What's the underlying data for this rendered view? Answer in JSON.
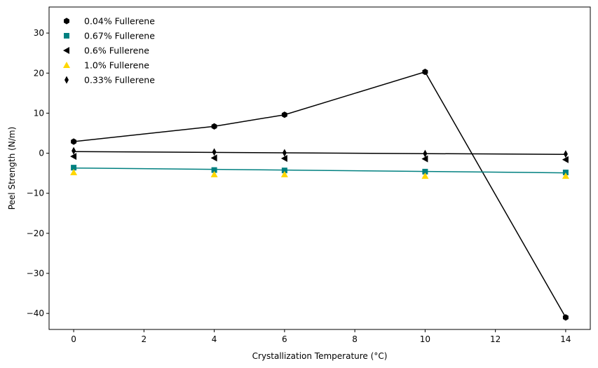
{
  "chart_data": {
    "type": "scatter",
    "title": "",
    "xlabel": "Crystallization Temperature (°C)",
    "ylabel": "Peel Strength (N/m)",
    "xlim": [
      -0.7,
      14.7
    ],
    "ylim": [
      -44,
      36.5
    ],
    "xticks": [
      0,
      2,
      4,
      6,
      8,
      10,
      12,
      14
    ],
    "yticks": [
      -40,
      -30,
      -20,
      -10,
      0,
      10,
      20,
      30
    ],
    "grid": false,
    "legend": "top-left",
    "x": [
      0,
      4,
      6,
      10,
      14
    ],
    "series": [
      {
        "name": "0.04% Fullerene",
        "marker": "hexagon",
        "color": "#000000",
        "values": [
          2.9,
          6.7,
          9.6,
          20.3,
          -41.0
        ],
        "fit_line": {
          "x": [
            0,
            4,
            6,
            10,
            14
          ],
          "y": [
            2.9,
            6.7,
            9.6,
            20.3,
            -41.0
          ],
          "color": "#000000"
        }
      },
      {
        "name": "0.67% Fullerene",
        "marker": "square",
        "color": "#008080",
        "values": [
          -3.6,
          -4.2,
          -4.3,
          -4.6,
          -4.8
        ],
        "fit_line": {
          "x": [
            0,
            14
          ],
          "y": [
            -3.7,
            -4.9
          ],
          "color": "#008080"
        }
      },
      {
        "name": "0.6% Fullerene",
        "marker": "triangle-left",
        "color": "#000000",
        "values": [
          -0.8,
          -1.2,
          -1.3,
          -1.4,
          -1.6
        ],
        "fit_line": null
      },
      {
        "name": "1.0% Fullerene",
        "marker": "triangle-up",
        "color": "#FFD700",
        "values": [
          -4.8,
          -5.3,
          -5.3,
          -5.7,
          -5.7
        ],
        "fit_line": null
      },
      {
        "name": "0.33% Fullerene",
        "marker": "thin-diamond",
        "color": "#000000",
        "values": [
          0.6,
          0.3,
          0.1,
          -0.1,
          -0.2
        ],
        "fit_line": {
          "x": [
            0,
            14
          ],
          "y": [
            0.4,
            -0.3
          ],
          "color": "#000000"
        }
      }
    ]
  }
}
